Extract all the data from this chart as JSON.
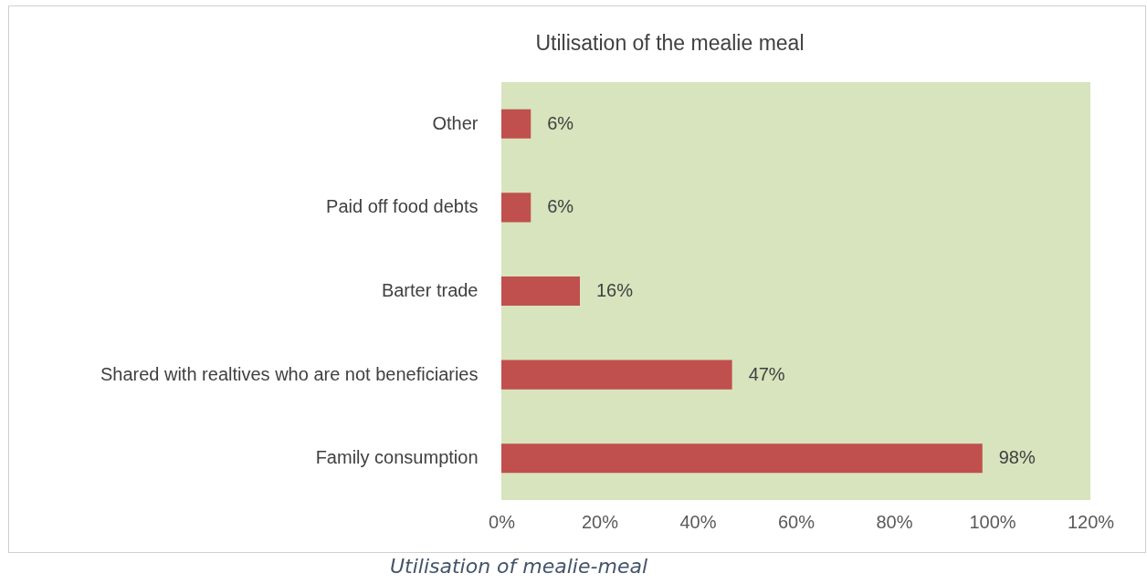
{
  "chart_data": {
    "type": "bar",
    "orientation": "horizontal",
    "title": "Utilisation of the mealie meal",
    "categories": [
      "Other",
      "Paid off food debts",
      "Barter trade",
      "Shared with realtives who are not beneficiaries",
      "Family consumption"
    ],
    "values": [
      6,
      6,
      16,
      47,
      98
    ],
    "value_labels": [
      "6%",
      "6%",
      "16%",
      "47%",
      "98%"
    ],
    "color": "#c0504d",
    "xlim": [
      0,
      120
    ],
    "xticks": [
      {
        "value": 0,
        "label": "0%"
      },
      {
        "value": 20,
        "label": "20%"
      },
      {
        "value": 40,
        "label": "40%"
      },
      {
        "value": 60,
        "label": "60%"
      },
      {
        "value": 80,
        "label": "80%"
      },
      {
        "value": 100,
        "label": "100%"
      },
      {
        "value": 120,
        "label": "120%"
      }
    ],
    "grid": false,
    "annotations": [
      "Utilisation of mealie-meal"
    ]
  }
}
